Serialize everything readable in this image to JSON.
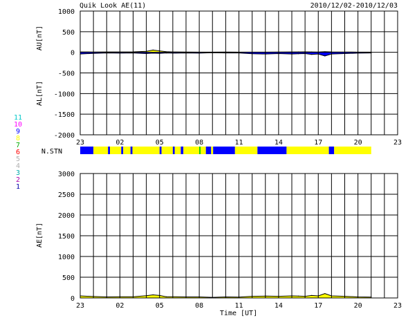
{
  "header": {
    "title": "Quik Look AE(11)",
    "date_range": "2010/12/02-2010/12/03"
  },
  "x_tick_labels": [
    "23",
    "02",
    "05",
    "08",
    "11",
    "14",
    "17",
    "20",
    "23"
  ],
  "x_axis_label": "Time [UT]",
  "station_strip_label": "N.STN",
  "station_legend": [
    {
      "label": "11",
      "color": "#00c8c8"
    },
    {
      "label": "10",
      "color": "#ff00ff"
    },
    {
      "label": "9",
      "color": "#0000ff"
    },
    {
      "label": "8",
      "color": "#ffff00"
    },
    {
      "label": "7",
      "color": "#00aa00"
    },
    {
      "label": "6",
      "color": "#ff0000"
    },
    {
      "label": "5",
      "color": "#b0b0b0"
    },
    {
      "label": "4",
      "color": "#b0b0b0"
    },
    {
      "label": "3",
      "color": "#00aaaa"
    },
    {
      "label": "2",
      "color": "#aa00aa"
    },
    {
      "label": "1",
      "color": "#0000aa"
    }
  ],
  "colors": {
    "positive_fill": "#ffff00",
    "negative_fill": "#0000ff",
    "grid": "#000000",
    "station_yellow": "#ffff00",
    "station_blue": "#0000ff",
    "station_green": "#00cc00"
  },
  "chart_data": [
    {
      "type": "area",
      "title": "Quik Look AE(11)",
      "series": [
        {
          "name": "AU[nT]",
          "x": [
            0,
            1,
            2,
            3,
            4,
            5,
            5.5,
            6,
            6.5,
            7,
            8,
            9,
            10,
            11,
            12,
            13,
            14,
            15,
            16,
            16.5,
            17,
            17.5,
            18,
            18.5,
            19,
            20,
            21,
            22
          ],
          "values": [
            10,
            8,
            10,
            10,
            12,
            25,
            55,
            35,
            15,
            10,
            8,
            5,
            5,
            8,
            5,
            5,
            5,
            8,
            10,
            10,
            12,
            10,
            8,
            15,
            10,
            8,
            5,
            5
          ]
        },
        {
          "name": "AL[nT]",
          "x": [
            0,
            1,
            2,
            3,
            4,
            5,
            5.5,
            6,
            6.5,
            7,
            8,
            9,
            10,
            11,
            12,
            13,
            14,
            15,
            16,
            16.5,
            17,
            17.5,
            18,
            18.5,
            19,
            20,
            21,
            22
          ],
          "values": [
            -40,
            -25,
            -15,
            -20,
            -15,
            -30,
            -20,
            -25,
            -15,
            -20,
            -15,
            -20,
            -10,
            -15,
            -15,
            -35,
            -40,
            -30,
            -40,
            -35,
            -30,
            -50,
            -40,
            -90,
            -40,
            -30,
            -20,
            -15
          ]
        }
      ],
      "x_unit": "hours since 23 UT",
      "xlim": [
        0,
        24
      ],
      "ylim": [
        -2000,
        1000
      ],
      "yticks": [
        1000,
        500,
        0,
        -500,
        -1000,
        -1500,
        -2000
      ],
      "ylabel_upper": "AU[nT]",
      "ylabel_lower": "AL[nT]",
      "grid": true
    },
    {
      "type": "bar",
      "name": "N.STN",
      "segments": [
        {
          "start": 0.0,
          "end": 1.0,
          "color": "blue"
        },
        {
          "start": 1.0,
          "end": 2.1,
          "color": "yellow"
        },
        {
          "start": 2.1,
          "end": 2.25,
          "color": "blue"
        },
        {
          "start": 2.25,
          "end": 3.1,
          "color": "yellow"
        },
        {
          "start": 3.1,
          "end": 3.25,
          "color": "blue"
        },
        {
          "start": 3.25,
          "end": 3.8,
          "color": "yellow"
        },
        {
          "start": 3.8,
          "end": 3.95,
          "color": "blue"
        },
        {
          "start": 3.95,
          "end": 6.0,
          "color": "yellow"
        },
        {
          "start": 6.0,
          "end": 6.15,
          "color": "blue"
        },
        {
          "start": 6.15,
          "end": 7.0,
          "color": "yellow"
        },
        {
          "start": 7.0,
          "end": 7.15,
          "color": "blue"
        },
        {
          "start": 7.15,
          "end": 7.6,
          "color": "yellow"
        },
        {
          "start": 7.6,
          "end": 7.8,
          "color": "blue"
        },
        {
          "start": 7.8,
          "end": 9.0,
          "color": "yellow"
        },
        {
          "start": 9.0,
          "end": 9.1,
          "color": "green"
        },
        {
          "start": 9.1,
          "end": 9.5,
          "color": "yellow"
        },
        {
          "start": 9.5,
          "end": 9.9,
          "color": "blue"
        },
        {
          "start": 9.9,
          "end": 10.05,
          "color": "yellow"
        },
        {
          "start": 10.05,
          "end": 11.7,
          "color": "blue"
        },
        {
          "start": 11.7,
          "end": 13.4,
          "color": "yellow"
        },
        {
          "start": 13.4,
          "end": 15.6,
          "color": "blue"
        },
        {
          "start": 15.6,
          "end": 18.8,
          "color": "yellow"
        },
        {
          "start": 18.8,
          "end": 19.2,
          "color": "blue"
        },
        {
          "start": 19.2,
          "end": 22.0,
          "color": "yellow"
        }
      ],
      "xlim": [
        0,
        24
      ]
    },
    {
      "type": "area",
      "series": [
        {
          "name": "AE[nT]",
          "x": [
            0,
            1,
            2,
            3,
            4,
            5,
            5.5,
            6,
            6.5,
            7,
            8,
            9,
            10,
            11,
            12,
            13,
            14,
            15,
            16,
            16.5,
            17,
            17.5,
            18,
            18.5,
            19,
            20,
            21,
            22
          ],
          "values": [
            50,
            35,
            25,
            30,
            30,
            55,
            75,
            60,
            30,
            30,
            25,
            25,
            15,
            25,
            20,
            40,
            45,
            40,
            50,
            45,
            40,
            60,
            50,
            105,
            50,
            40,
            25,
            20
          ]
        }
      ],
      "x_unit": "hours since 23 UT",
      "xlim": [
        0,
        24
      ],
      "ylim": [
        0,
        3000
      ],
      "yticks": [
        3000,
        2500,
        2000,
        1500,
        1000,
        500,
        0
      ],
      "ylabel": "AE[nT]",
      "xlabel": "Time [UT]",
      "grid": true
    }
  ]
}
